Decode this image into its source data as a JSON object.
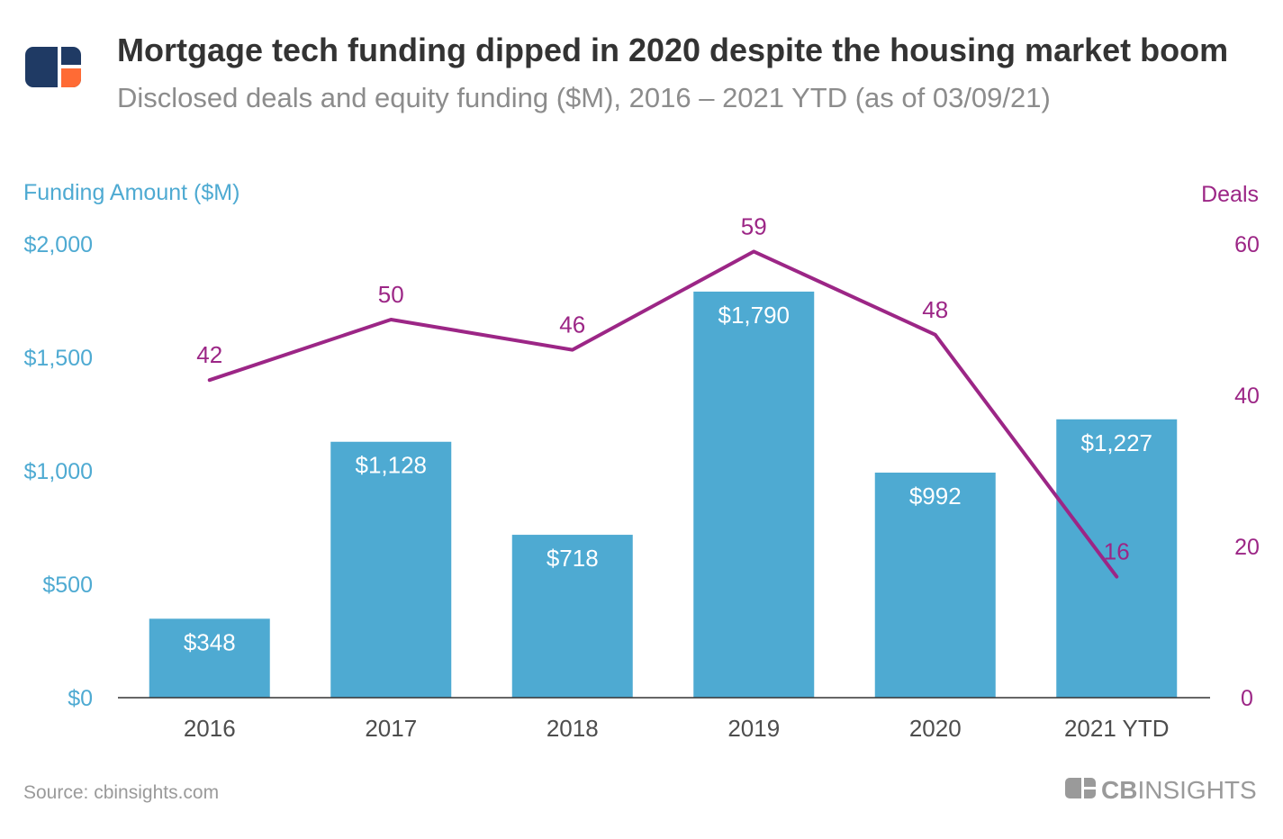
{
  "logo": {
    "icon": "cb-insights-logo-icon",
    "colors": {
      "navy": "#1f3a64",
      "orange": "#ff6b35",
      "mark": "#ffffff"
    }
  },
  "header": {
    "title": "Mortgage tech funding dipped in 2020 despite the housing market boom",
    "subtitle": "Disclosed deals and equity funding ($M), 2016 – 2021 YTD (as of 03/09/21)"
  },
  "footer": {
    "source": "Source: cbinsights.com",
    "brand_bold": "CB",
    "brand_light": "INSIGHTS",
    "brand_icon": "cb-insights-small-logo-icon"
  },
  "colors": {
    "bars": "#4eaad2",
    "deals_line": "#9c2686",
    "left_axis": "#4eaad2",
    "right_axis": "#9c2686",
    "baseline": "#333333"
  },
  "chart_data": {
    "type": "bar",
    "categories": [
      "2016",
      "2017",
      "2018",
      "2019",
      "2020",
      "2021 YTD"
    ],
    "series": [
      {
        "name": "Funding Amount ($M)",
        "type": "bar",
        "axis": "left",
        "values": [
          348,
          1128,
          718,
          1790,
          992,
          1227
        ],
        "labels": [
          "$348",
          "$1,128",
          "$718",
          "$1,790",
          "$992",
          "$1,227"
        ]
      },
      {
        "name": "Deals",
        "type": "line",
        "axis": "right",
        "values": [
          42,
          50,
          46,
          59,
          48,
          16
        ],
        "labels": [
          "42",
          "50",
          "46",
          "59",
          "48",
          "16"
        ]
      }
    ],
    "left_axis": {
      "title": "Funding Amount ($M)",
      "range": [
        0,
        2000
      ],
      "ticks": [
        0,
        500,
        1000,
        1500,
        2000
      ],
      "tick_labels": [
        "$0",
        "$500",
        "$1,000",
        "$1,500",
        "$2,000"
      ]
    },
    "right_axis": {
      "title": "Deals",
      "range": [
        0,
        60
      ],
      "ticks": [
        0,
        20,
        40,
        60
      ],
      "tick_labels": [
        "0",
        "20",
        "40",
        "60"
      ]
    },
    "grid": false,
    "legend": "none"
  }
}
